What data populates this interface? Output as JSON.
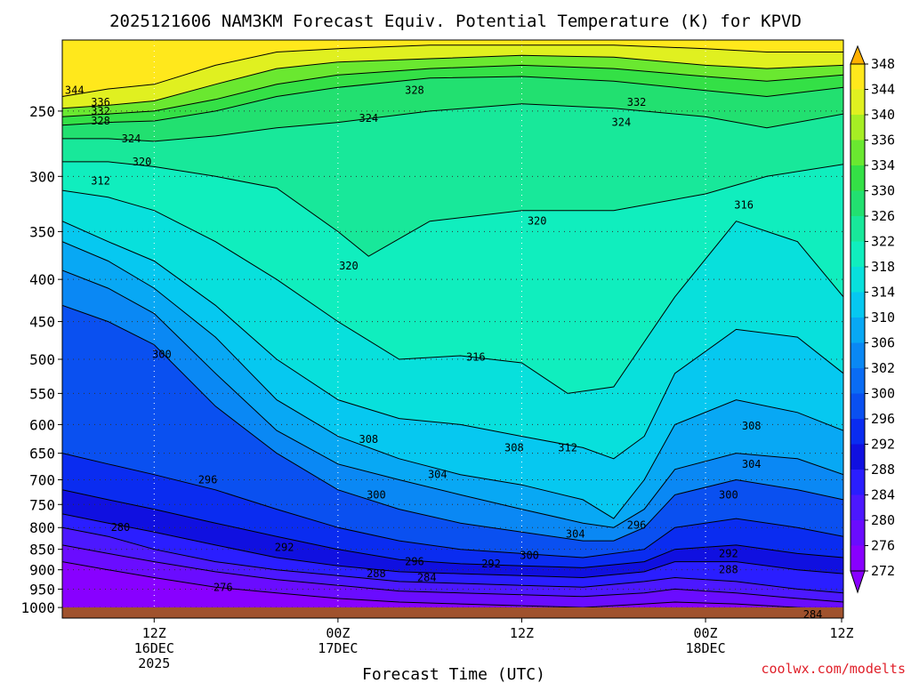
{
  "chart_data": {
    "type": "heatmap",
    "title": "2025121606 NAM3KM Forecast Equiv. Potential Temperature (K) for KPVD",
    "xlabel": "Forecast Time (UTC)",
    "ylabel": "",
    "y_unit": "hPa",
    "y_scale": "log-pressure",
    "y_ticks": [
      250,
      300,
      350,
      400,
      450,
      500,
      550,
      600,
      650,
      700,
      750,
      800,
      850,
      900,
      950,
      1000
    ],
    "ylim": [
      205,
      1030
    ],
    "x_unit": "hours since 2025-12-16 06Z",
    "xlim": [
      0,
      51
    ],
    "x_ticks": [
      {
        "hour": 6,
        "lines": [
          "12Z",
          "16DEC",
          "2025"
        ]
      },
      {
        "hour": 18,
        "lines": [
          "00Z",
          "17DEC"
        ]
      },
      {
        "hour": 30,
        "lines": [
          "12Z",
          ""
        ]
      },
      {
        "hour": 42,
        "lines": [
          "00Z",
          "18DEC"
        ]
      },
      {
        "hour": 54,
        "lines": [
          "12Z",
          ""
        ]
      }
    ],
    "colorbar": {
      "levels": [
        272,
        276,
        280,
        284,
        288,
        292,
        296,
        300,
        302,
        306,
        310,
        314,
        318,
        322,
        326,
        330,
        334,
        336,
        340,
        344,
        348
      ],
      "colors": [
        "#8800ff",
        "#6a0cff",
        "#4c18ff",
        "#2a1eff",
        "#1010e0",
        "#0a2cf0",
        "#0a50f0",
        "#0a6cf4",
        "#0a88f4",
        "#08a8f4",
        "#06c8f0",
        "#08e0dc",
        "#10eebe",
        "#18e89a",
        "#22e070",
        "#34e046",
        "#6ae830",
        "#a6ee24",
        "#e0f020",
        "#ffe81c",
        "#ffb000"
      ]
    },
    "series": [
      {
        "name": "344",
        "values": [
          [
            0,
            240
          ],
          [
            3,
            235
          ],
          [
            6,
            232
          ],
          [
            10,
            220
          ],
          [
            14,
            212
          ],
          [
            18,
            210
          ],
          [
            24,
            208
          ],
          [
            30,
            208
          ],
          [
            36,
            208
          ],
          [
            42,
            210
          ],
          [
            46,
            212
          ],
          [
            51,
            212
          ]
        ]
      },
      {
        "name": "336",
        "values": [
          [
            0,
            248
          ],
          [
            3,
            246
          ],
          [
            6,
            243
          ],
          [
            10,
            232
          ],
          [
            14,
            222
          ],
          [
            18,
            218
          ],
          [
            24,
            216
          ],
          [
            30,
            214
          ],
          [
            36,
            215
          ],
          [
            42,
            220
          ],
          [
            46,
            222
          ],
          [
            51,
            220
          ]
        ]
      },
      {
        "name": "332",
        "values": [
          [
            0,
            254
          ],
          [
            3,
            252
          ],
          [
            6,
            250
          ],
          [
            10,
            242
          ],
          [
            14,
            232
          ],
          [
            18,
            226
          ],
          [
            24,
            222
          ],
          [
            30,
            220
          ],
          [
            36,
            222
          ],
          [
            42,
            227
          ],
          [
            46,
            230
          ],
          [
            51,
            226
          ]
        ]
      },
      {
        "name": "328",
        "values": [
          [
            0,
            260
          ],
          [
            3,
            258
          ],
          [
            6,
            257
          ],
          [
            10,
            250
          ],
          [
            14,
            240
          ],
          [
            18,
            234
          ],
          [
            24,
            228
          ],
          [
            30,
            227
          ],
          [
            36,
            230
          ],
          [
            42,
            236
          ],
          [
            46,
            240
          ],
          [
            51,
            234
          ]
        ]
      },
      {
        "name": "324",
        "values": [
          [
            0,
            270
          ],
          [
            3,
            270
          ],
          [
            6,
            272
          ],
          [
            10,
            268
          ],
          [
            14,
            262
          ],
          [
            18,
            258
          ],
          [
            24,
            250
          ],
          [
            30,
            245
          ],
          [
            36,
            248
          ],
          [
            42,
            254
          ],
          [
            46,
            262
          ],
          [
            51,
            252
          ]
        ]
      },
      {
        "name": "320",
        "values": [
          [
            0,
            288
          ],
          [
            3,
            288
          ],
          [
            6,
            292
          ],
          [
            10,
            300
          ],
          [
            14,
            310
          ],
          [
            18,
            350
          ],
          [
            20,
            375
          ],
          [
            24,
            340
          ],
          [
            30,
            330
          ],
          [
            36,
            330
          ],
          [
            42,
            315
          ],
          [
            46,
            300
          ],
          [
            51,
            290
          ]
        ]
      },
      {
        "name": "316",
        "values": [
          [
            0,
            312
          ],
          [
            3,
            318
          ],
          [
            6,
            330
          ],
          [
            10,
            360
          ],
          [
            14,
            400
          ],
          [
            18,
            450
          ],
          [
            22,
            500
          ],
          [
            26,
            495
          ],
          [
            30,
            505
          ],
          [
            33,
            550
          ],
          [
            36,
            540
          ],
          [
            40,
            420
          ],
          [
            44,
            340
          ],
          [
            48,
            360
          ],
          [
            51,
            420
          ]
        ]
      },
      {
        "name": "312",
        "values": [
          [
            0,
            340
          ],
          [
            3,
            360
          ],
          [
            6,
            380
          ],
          [
            10,
            430
          ],
          [
            14,
            500
          ],
          [
            18,
            560
          ],
          [
            22,
            590
          ],
          [
            26,
            600
          ],
          [
            30,
            620
          ],
          [
            34,
            640
          ],
          [
            36,
            660
          ],
          [
            38,
            620
          ],
          [
            40,
            520
          ],
          [
            44,
            460
          ],
          [
            48,
            470
          ],
          [
            51,
            520
          ]
        ]
      },
      {
        "name": "308",
        "values": [
          [
            0,
            360
          ],
          [
            3,
            380
          ],
          [
            6,
            410
          ],
          [
            10,
            470
          ],
          [
            14,
            560
          ],
          [
            18,
            620
          ],
          [
            22,
            660
          ],
          [
            26,
            690
          ],
          [
            30,
            710
          ],
          [
            34,
            740
          ],
          [
            36,
            780
          ],
          [
            38,
            700
          ],
          [
            40,
            600
          ],
          [
            44,
            560
          ],
          [
            48,
            580
          ],
          [
            51,
            610
          ]
        ]
      },
      {
        "name": "304",
        "values": [
          [
            0,
            390
          ],
          [
            3,
            410
          ],
          [
            6,
            440
          ],
          [
            10,
            520
          ],
          [
            14,
            610
          ],
          [
            18,
            670
          ],
          [
            22,
            700
          ],
          [
            26,
            730
          ],
          [
            30,
            760
          ],
          [
            34,
            790
          ],
          [
            36,
            800
          ],
          [
            38,
            760
          ],
          [
            40,
            680
          ],
          [
            44,
            650
          ],
          [
            48,
            660
          ],
          [
            51,
            690
          ]
        ]
      },
      {
        "name": "300",
        "values": [
          [
            0,
            430
          ],
          [
            3,
            450
          ],
          [
            6,
            480
          ],
          [
            10,
            570
          ],
          [
            14,
            650
          ],
          [
            18,
            720
          ],
          [
            22,
            760
          ],
          [
            26,
            790
          ],
          [
            30,
            810
          ],
          [
            34,
            830
          ],
          [
            36,
            830
          ],
          [
            38,
            800
          ],
          [
            40,
            730
          ],
          [
            44,
            700
          ],
          [
            48,
            720
          ],
          [
            51,
            740
          ]
        ]
      },
      {
        "name": "296",
        "values": [
          [
            0,
            650
          ],
          [
            3,
            670
          ],
          [
            6,
            690
          ],
          [
            10,
            720
          ],
          [
            14,
            760
          ],
          [
            18,
            800
          ],
          [
            22,
            830
          ],
          [
            26,
            850
          ],
          [
            30,
            860
          ],
          [
            34,
            870
          ],
          [
            38,
            850
          ],
          [
            40,
            800
          ],
          [
            44,
            780
          ],
          [
            48,
            800
          ],
          [
            51,
            820
          ]
        ]
      },
      {
        "name": "292",
        "values": [
          [
            0,
            720
          ],
          [
            3,
            740
          ],
          [
            6,
            760
          ],
          [
            10,
            790
          ],
          [
            14,
            820
          ],
          [
            18,
            850
          ],
          [
            22,
            875
          ],
          [
            26,
            885
          ],
          [
            30,
            890
          ],
          [
            34,
            895
          ],
          [
            38,
            880
          ],
          [
            40,
            850
          ],
          [
            44,
            840
          ],
          [
            48,
            860
          ],
          [
            51,
            870
          ]
        ]
      },
      {
        "name": "288",
        "values": [
          [
            0,
            770
          ],
          [
            3,
            790
          ],
          [
            6,
            810
          ],
          [
            10,
            840
          ],
          [
            14,
            870
          ],
          [
            18,
            890
          ],
          [
            22,
            905
          ],
          [
            26,
            910
          ],
          [
            30,
            915
          ],
          [
            34,
            920
          ],
          [
            38,
            905
          ],
          [
            40,
            880
          ],
          [
            44,
            880
          ],
          [
            48,
            900
          ],
          [
            51,
            910
          ]
        ]
      },
      {
        "name": "284",
        "values": [
          [
            0,
            800
          ],
          [
            3,
            820
          ],
          [
            6,
            850
          ],
          [
            10,
            880
          ],
          [
            14,
            900
          ],
          [
            18,
            915
          ],
          [
            22,
            930
          ],
          [
            26,
            935
          ],
          [
            30,
            940
          ],
          [
            34,
            945
          ],
          [
            38,
            930
          ],
          [
            40,
            920
          ],
          [
            44,
            930
          ],
          [
            48,
            950
          ],
          [
            51,
            960
          ]
        ]
      },
      {
        "name": "280",
        "values": [
          [
            0,
            840
          ],
          [
            3,
            860
          ],
          [
            6,
            880
          ],
          [
            10,
            905
          ],
          [
            14,
            925
          ],
          [
            18,
            940
          ],
          [
            22,
            955
          ],
          [
            26,
            960
          ],
          [
            30,
            965
          ],
          [
            34,
            970
          ],
          [
            38,
            960
          ],
          [
            40,
            950
          ],
          [
            44,
            960
          ],
          [
            48,
            975
          ],
          [
            51,
            985
          ]
        ]
      },
      {
        "name": "276",
        "values": [
          [
            0,
            880
          ],
          [
            3,
            900
          ],
          [
            6,
            920
          ],
          [
            10,
            945
          ],
          [
            14,
            960
          ],
          [
            18,
            975
          ],
          [
            22,
            985
          ],
          [
            26,
            990
          ],
          [
            30,
            995
          ],
          [
            34,
            1000
          ],
          [
            38,
            990
          ],
          [
            40,
            985
          ],
          [
            44,
            990
          ],
          [
            48,
            1000
          ],
          [
            51,
            1005
          ]
        ]
      }
    ],
    "labels": [
      {
        "text": "344",
        "hour": 0.8,
        "p": 236
      },
      {
        "text": "336",
        "hour": 2.5,
        "p": 244
      },
      {
        "text": "332",
        "hour": 2.5,
        "p": 250
      },
      {
        "text": "328",
        "hour": 2.5,
        "p": 257
      },
      {
        "text": "324",
        "hour": 4.5,
        "p": 270
      },
      {
        "text": "320",
        "hour": 5.2,
        "p": 288
      },
      {
        "text": "312",
        "hour": 2.5,
        "p": 304
      },
      {
        "text": "328",
        "hour": 23,
        "p": 236
      },
      {
        "text": "324",
        "hour": 20,
        "p": 255
      },
      {
        "text": "332",
        "hour": 37.5,
        "p": 244
      },
      {
        "text": "324",
        "hour": 36.5,
        "p": 258
      },
      {
        "text": "320",
        "hour": 31,
        "p": 340
      },
      {
        "text": "316",
        "hour": 44.5,
        "p": 325
      },
      {
        "text": "320",
        "hour": 18.7,
        "p": 385
      },
      {
        "text": "316",
        "hour": 27,
        "p": 497
      },
      {
        "text": "300",
        "hour": 6.5,
        "p": 493
      },
      {
        "text": "308",
        "hour": 20,
        "p": 625
      },
      {
        "text": "308",
        "hour": 29.5,
        "p": 640
      },
      {
        "text": "312",
        "hour": 33,
        "p": 640
      },
      {
        "text": "308",
        "hour": 45,
        "p": 602
      },
      {
        "text": "304",
        "hour": 24.5,
        "p": 690
      },
      {
        "text": "304",
        "hour": 45,
        "p": 670
      },
      {
        "text": "304",
        "hour": 33.5,
        "p": 815
      },
      {
        "text": "300",
        "hour": 20.5,
        "p": 730
      },
      {
        "text": "300",
        "hour": 43.5,
        "p": 730
      },
      {
        "text": "296",
        "hour": 9.5,
        "p": 700
      },
      {
        "text": "296",
        "hour": 37.5,
        "p": 795
      },
      {
        "text": "296",
        "hour": 23,
        "p": 880
      },
      {
        "text": "292",
        "hour": 14.5,
        "p": 845
      },
      {
        "text": "292",
        "hour": 28,
        "p": 885
      },
      {
        "text": "292",
        "hour": 43.5,
        "p": 860
      },
      {
        "text": "300",
        "hour": 30.5,
        "p": 865
      },
      {
        "text": "288",
        "hour": 20.5,
        "p": 910
      },
      {
        "text": "288",
        "hour": 43.5,
        "p": 900
      },
      {
        "text": "284",
        "hour": 23.8,
        "p": 920
      },
      {
        "text": "284",
        "hour": 49,
        "p": 1020
      },
      {
        "text": "280",
        "hour": 3.8,
        "p": 800
      },
      {
        "text": "276",
        "hour": 10.5,
        "p": 945
      }
    ]
  },
  "credit": "coolwx.com/modelts",
  "colors": {
    "ground": "#a0522d"
  }
}
